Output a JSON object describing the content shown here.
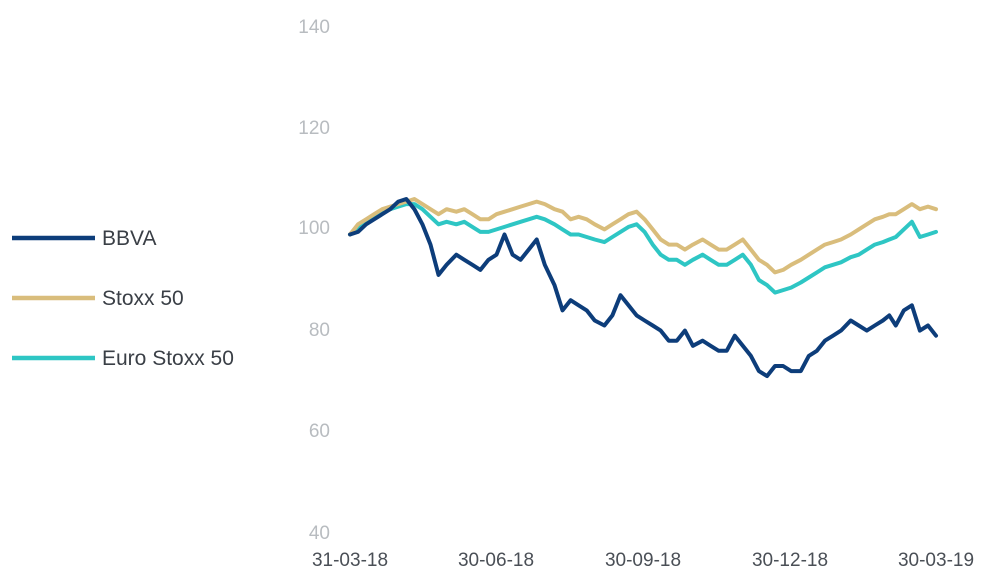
{
  "chart_data": {
    "type": "line",
    "title": "",
    "xlabel": "",
    "ylabel": "",
    "ylim": [
      40,
      140
    ],
    "y_ticks": [
      "140",
      "120",
      "100",
      "80",
      "60",
      "40"
    ],
    "x_ticks": [
      "31-03-18",
      "30-06-18",
      "30-09-18",
      "30-12-18",
      "30-03-19"
    ],
    "x_range": [
      "2018-03-31",
      "2019-03-30"
    ],
    "grid": false,
    "legend_position": "left",
    "series": [
      {
        "name": "BBVA",
        "color": "#0d3d7a",
        "points": [
          [
            "2018-03-31",
            99
          ],
          [
            "2018-04-05",
            99.5
          ],
          [
            "2018-04-10",
            101
          ],
          [
            "2018-04-15",
            102
          ],
          [
            "2018-04-20",
            103
          ],
          [
            "2018-04-25",
            104
          ],
          [
            "2018-04-30",
            105.5
          ],
          [
            "2018-05-05",
            106
          ],
          [
            "2018-05-10",
            104
          ],
          [
            "2018-05-15",
            101
          ],
          [
            "2018-05-20",
            97
          ],
          [
            "2018-05-25",
            91
          ],
          [
            "2018-05-30",
            93
          ],
          [
            "2018-06-05",
            95
          ],
          [
            "2018-06-10",
            94
          ],
          [
            "2018-06-15",
            93
          ],
          [
            "2018-06-20",
            92
          ],
          [
            "2018-06-25",
            94
          ],
          [
            "2018-06-30",
            95
          ],
          [
            "2018-07-05",
            99
          ],
          [
            "2018-07-10",
            95
          ],
          [
            "2018-07-15",
            94
          ],
          [
            "2018-07-20",
            96
          ],
          [
            "2018-07-25",
            98
          ],
          [
            "2018-07-30",
            93
          ],
          [
            "2018-08-05",
            89
          ],
          [
            "2018-08-10",
            84
          ],
          [
            "2018-08-15",
            86
          ],
          [
            "2018-08-20",
            85
          ],
          [
            "2018-08-25",
            84
          ],
          [
            "2018-08-30",
            82
          ],
          [
            "2018-09-05",
            81
          ],
          [
            "2018-09-10",
            83
          ],
          [
            "2018-09-15",
            87
          ],
          [
            "2018-09-20",
            85
          ],
          [
            "2018-09-25",
            83
          ],
          [
            "2018-09-30",
            82
          ],
          [
            "2018-10-05",
            81
          ],
          [
            "2018-10-10",
            80
          ],
          [
            "2018-10-15",
            78
          ],
          [
            "2018-10-20",
            78
          ],
          [
            "2018-10-25",
            80
          ],
          [
            "2018-10-30",
            77
          ],
          [
            "2018-11-05",
            78
          ],
          [
            "2018-11-10",
            77
          ],
          [
            "2018-11-15",
            76
          ],
          [
            "2018-11-20",
            76
          ],
          [
            "2018-11-25",
            79
          ],
          [
            "2018-11-30",
            77
          ],
          [
            "2018-12-05",
            75
          ],
          [
            "2018-12-10",
            72
          ],
          [
            "2018-12-15",
            71
          ],
          [
            "2018-12-20",
            73
          ],
          [
            "2018-12-25",
            73
          ],
          [
            "2018-12-30",
            72
          ],
          [
            "2019-01-05",
            72
          ],
          [
            "2019-01-10",
            75
          ],
          [
            "2019-01-15",
            76
          ],
          [
            "2019-01-20",
            78
          ],
          [
            "2019-01-25",
            79
          ],
          [
            "2019-01-30",
            80
          ],
          [
            "2019-02-05",
            82
          ],
          [
            "2019-02-10",
            81
          ],
          [
            "2019-02-15",
            80
          ],
          [
            "2019-02-20",
            81
          ],
          [
            "2019-02-25",
            82
          ],
          [
            "2019-03-01",
            83
          ],
          [
            "2019-03-05",
            81
          ],
          [
            "2019-03-10",
            84
          ],
          [
            "2019-03-15",
            85
          ],
          [
            "2019-03-20",
            80
          ],
          [
            "2019-03-25",
            81
          ],
          [
            "2019-03-30",
            79
          ]
        ]
      },
      {
        "name": "Stoxx 50",
        "color": "#d9bd7c",
        "points": [
          [
            "2018-03-31",
            99
          ],
          [
            "2018-04-05",
            101
          ],
          [
            "2018-04-10",
            102
          ],
          [
            "2018-04-15",
            103
          ],
          [
            "2018-04-20",
            104
          ],
          [
            "2018-04-25",
            104.5
          ],
          [
            "2018-04-30",
            105
          ],
          [
            "2018-05-05",
            105.5
          ],
          [
            "2018-05-10",
            106
          ],
          [
            "2018-05-15",
            105
          ],
          [
            "2018-05-20",
            104
          ],
          [
            "2018-05-25",
            103
          ],
          [
            "2018-05-30",
            104
          ],
          [
            "2018-06-05",
            103.5
          ],
          [
            "2018-06-10",
            104
          ],
          [
            "2018-06-15",
            103
          ],
          [
            "2018-06-20",
            102
          ],
          [
            "2018-06-25",
            102
          ],
          [
            "2018-06-30",
            103
          ],
          [
            "2018-07-05",
            103.5
          ],
          [
            "2018-07-10",
            104
          ],
          [
            "2018-07-15",
            104.5
          ],
          [
            "2018-07-20",
            105
          ],
          [
            "2018-07-25",
            105.5
          ],
          [
            "2018-07-30",
            105
          ],
          [
            "2018-08-05",
            104
          ],
          [
            "2018-08-10",
            103.5
          ],
          [
            "2018-08-15",
            102
          ],
          [
            "2018-08-20",
            102.5
          ],
          [
            "2018-08-25",
            102
          ],
          [
            "2018-08-30",
            101
          ],
          [
            "2018-09-05",
            100
          ],
          [
            "2018-09-10",
            101
          ],
          [
            "2018-09-15",
            102
          ],
          [
            "2018-09-20",
            103
          ],
          [
            "2018-09-25",
            103.5
          ],
          [
            "2018-09-30",
            102
          ],
          [
            "2018-10-05",
            100
          ],
          [
            "2018-10-10",
            98
          ],
          [
            "2018-10-15",
            97
          ],
          [
            "2018-10-20",
            97
          ],
          [
            "2018-10-25",
            96
          ],
          [
            "2018-10-30",
            97
          ],
          [
            "2018-11-05",
            98
          ],
          [
            "2018-11-10",
            97
          ],
          [
            "2018-11-15",
            96
          ],
          [
            "2018-11-20",
            96
          ],
          [
            "2018-11-25",
            97
          ],
          [
            "2018-11-30",
            98
          ],
          [
            "2018-12-05",
            96
          ],
          [
            "2018-12-10",
            94
          ],
          [
            "2018-12-15",
            93
          ],
          [
            "2018-12-20",
            91.5
          ],
          [
            "2018-12-25",
            92
          ],
          [
            "2018-12-30",
            93
          ],
          [
            "2019-01-05",
            94
          ],
          [
            "2019-01-10",
            95
          ],
          [
            "2019-01-15",
            96
          ],
          [
            "2019-01-20",
            97
          ],
          [
            "2019-01-25",
            97.5
          ],
          [
            "2019-01-30",
            98
          ],
          [
            "2019-02-05",
            99
          ],
          [
            "2019-02-10",
            100
          ],
          [
            "2019-02-15",
            101
          ],
          [
            "2019-02-20",
            102
          ],
          [
            "2019-02-25",
            102.5
          ],
          [
            "2019-03-01",
            103
          ],
          [
            "2019-03-05",
            103
          ],
          [
            "2019-03-10",
            104
          ],
          [
            "2019-03-15",
            105
          ],
          [
            "2019-03-20",
            104
          ],
          [
            "2019-03-25",
            104.5
          ],
          [
            "2019-03-30",
            104
          ]
        ]
      },
      {
        "name": "Euro Stoxx 50",
        "color": "#2ec6c4",
        "points": [
          [
            "2018-03-31",
            99
          ],
          [
            "2018-04-05",
            100.5
          ],
          [
            "2018-04-10",
            101.5
          ],
          [
            "2018-04-15",
            102.5
          ],
          [
            "2018-04-20",
            103.5
          ],
          [
            "2018-04-25",
            104
          ],
          [
            "2018-04-30",
            104.5
          ],
          [
            "2018-05-05",
            105
          ],
          [
            "2018-05-10",
            105
          ],
          [
            "2018-05-15",
            104
          ],
          [
            "2018-05-20",
            102.5
          ],
          [
            "2018-05-25",
            101
          ],
          [
            "2018-05-30",
            101.5
          ],
          [
            "2018-06-05",
            101
          ],
          [
            "2018-06-10",
            101.5
          ],
          [
            "2018-06-15",
            100.5
          ],
          [
            "2018-06-20",
            99.5
          ],
          [
            "2018-06-25",
            99.5
          ],
          [
            "2018-06-30",
            100
          ],
          [
            "2018-07-05",
            100.5
          ],
          [
            "2018-07-10",
            101
          ],
          [
            "2018-07-15",
            101.5
          ],
          [
            "2018-07-20",
            102
          ],
          [
            "2018-07-25",
            102.5
          ],
          [
            "2018-07-30",
            102
          ],
          [
            "2018-08-05",
            101
          ],
          [
            "2018-08-10",
            100
          ],
          [
            "2018-08-15",
            99
          ],
          [
            "2018-08-20",
            99
          ],
          [
            "2018-08-25",
            98.5
          ],
          [
            "2018-08-30",
            98
          ],
          [
            "2018-09-05",
            97.5
          ],
          [
            "2018-09-10",
            98.5
          ],
          [
            "2018-09-15",
            99.5
          ],
          [
            "2018-09-20",
            100.5
          ],
          [
            "2018-09-25",
            101
          ],
          [
            "2018-09-30",
            99.5
          ],
          [
            "2018-10-05",
            97
          ],
          [
            "2018-10-10",
            95
          ],
          [
            "2018-10-15",
            94
          ],
          [
            "2018-10-20",
            94
          ],
          [
            "2018-10-25",
            93
          ],
          [
            "2018-10-30",
            94
          ],
          [
            "2018-11-05",
            95
          ],
          [
            "2018-11-10",
            94
          ],
          [
            "2018-11-15",
            93
          ],
          [
            "2018-11-20",
            93
          ],
          [
            "2018-11-25",
            94
          ],
          [
            "2018-11-30",
            95
          ],
          [
            "2018-12-05",
            93
          ],
          [
            "2018-12-10",
            90
          ],
          [
            "2018-12-15",
            89
          ],
          [
            "2018-12-20",
            87.5
          ],
          [
            "2018-12-25",
            88
          ],
          [
            "2018-12-30",
            88.5
          ],
          [
            "2019-01-05",
            89.5
          ],
          [
            "2019-01-10",
            90.5
          ],
          [
            "2019-01-15",
            91.5
          ],
          [
            "2019-01-20",
            92.5
          ],
          [
            "2019-01-25",
            93
          ],
          [
            "2019-01-30",
            93.5
          ],
          [
            "2019-02-05",
            94.5
          ],
          [
            "2019-02-10",
            95
          ],
          [
            "2019-02-15",
            96
          ],
          [
            "2019-02-20",
            97
          ],
          [
            "2019-02-25",
            97.5
          ],
          [
            "2019-03-01",
            98
          ],
          [
            "2019-03-05",
            98.5
          ],
          [
            "2019-03-10",
            100
          ],
          [
            "2019-03-15",
            101.5
          ],
          [
            "2019-03-20",
            98.5
          ],
          [
            "2019-03-25",
            99
          ],
          [
            "2019-03-30",
            99.5
          ]
        ]
      }
    ]
  }
}
